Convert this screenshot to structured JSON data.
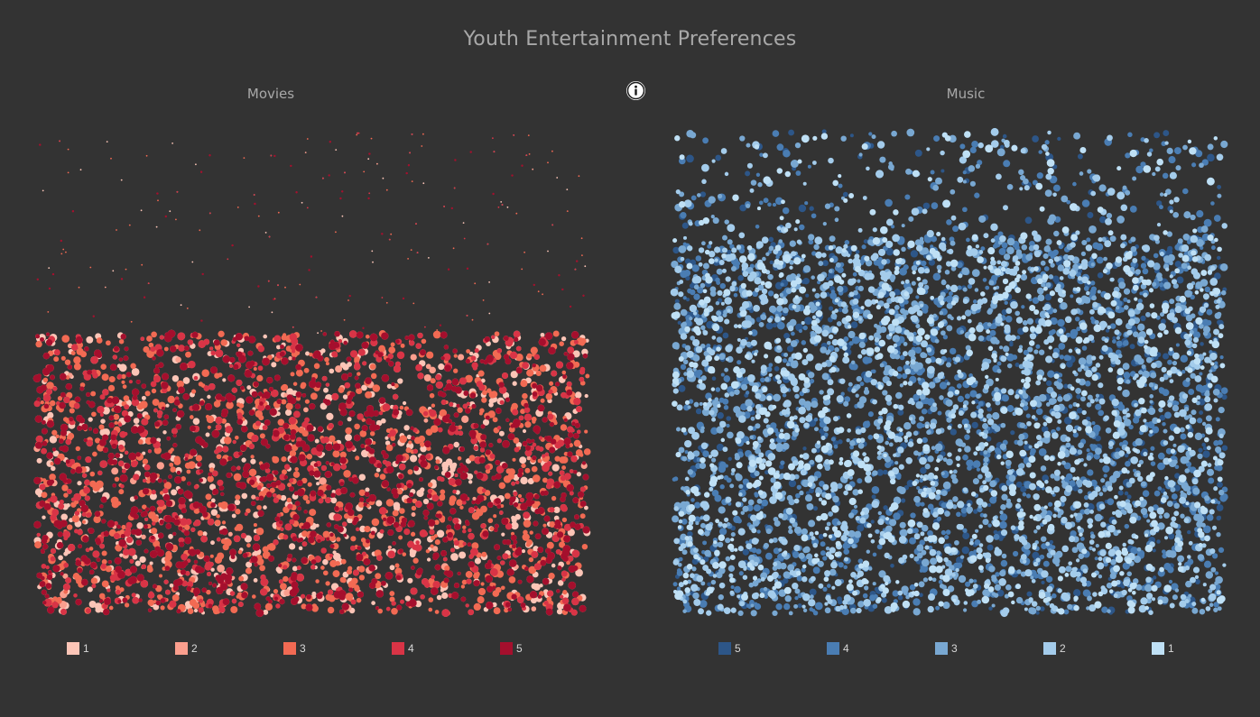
{
  "title": "Youth Entertainment Preferences",
  "info_icon": "info-icon",
  "chart_data": [
    {
      "type": "scatter",
      "title": "Movies",
      "legend": [
        {
          "label": "1",
          "color": "#fcc5b7"
        },
        {
          "label": "2",
          "color": "#fb9f8e"
        },
        {
          "label": "3",
          "color": "#f26a53"
        },
        {
          "label": "4",
          "color": "#d93446"
        },
        {
          "label": "5",
          "color": "#a50f2d"
        }
      ],
      "series": [
        {
          "rating": "1",
          "color": "#fcc5b7",
          "approx_points": 1600
        },
        {
          "rating": "2",
          "color": "#fb9f8e",
          "approx_points": 1900
        },
        {
          "rating": "3",
          "color": "#f26a53",
          "approx_points": 1700
        },
        {
          "rating": "4",
          "color": "#d93446",
          "approx_points": 1100
        },
        {
          "rating": "5",
          "color": "#a50f2d",
          "approx_points": 1500
        }
      ],
      "legend_position": "bottom",
      "grid": false,
      "axes_visible": false
    },
    {
      "type": "scatter",
      "title": "Music",
      "legend": [
        {
          "label": "5",
          "color": "#2d5688"
        },
        {
          "label": "4",
          "color": "#4a7db3"
        },
        {
          "label": "3",
          "color": "#79a8d2"
        },
        {
          "label": "2",
          "color": "#a4cceb"
        },
        {
          "label": "1",
          "color": "#bfe0f5"
        }
      ],
      "series": [
        {
          "rating": "5",
          "color": "#2d5688",
          "approx_points": 1500
        },
        {
          "rating": "4",
          "color": "#4a7db3",
          "approx_points": 2200
        },
        {
          "rating": "3",
          "color": "#79a8d2",
          "approx_points": 2300
        },
        {
          "rating": "2",
          "color": "#a4cceb",
          "approx_points": 1900
        },
        {
          "rating": "1",
          "color": "#bfe0f5",
          "approx_points": 1300
        }
      ],
      "legend_position": "bottom",
      "grid": false,
      "axes_visible": false
    }
  ]
}
